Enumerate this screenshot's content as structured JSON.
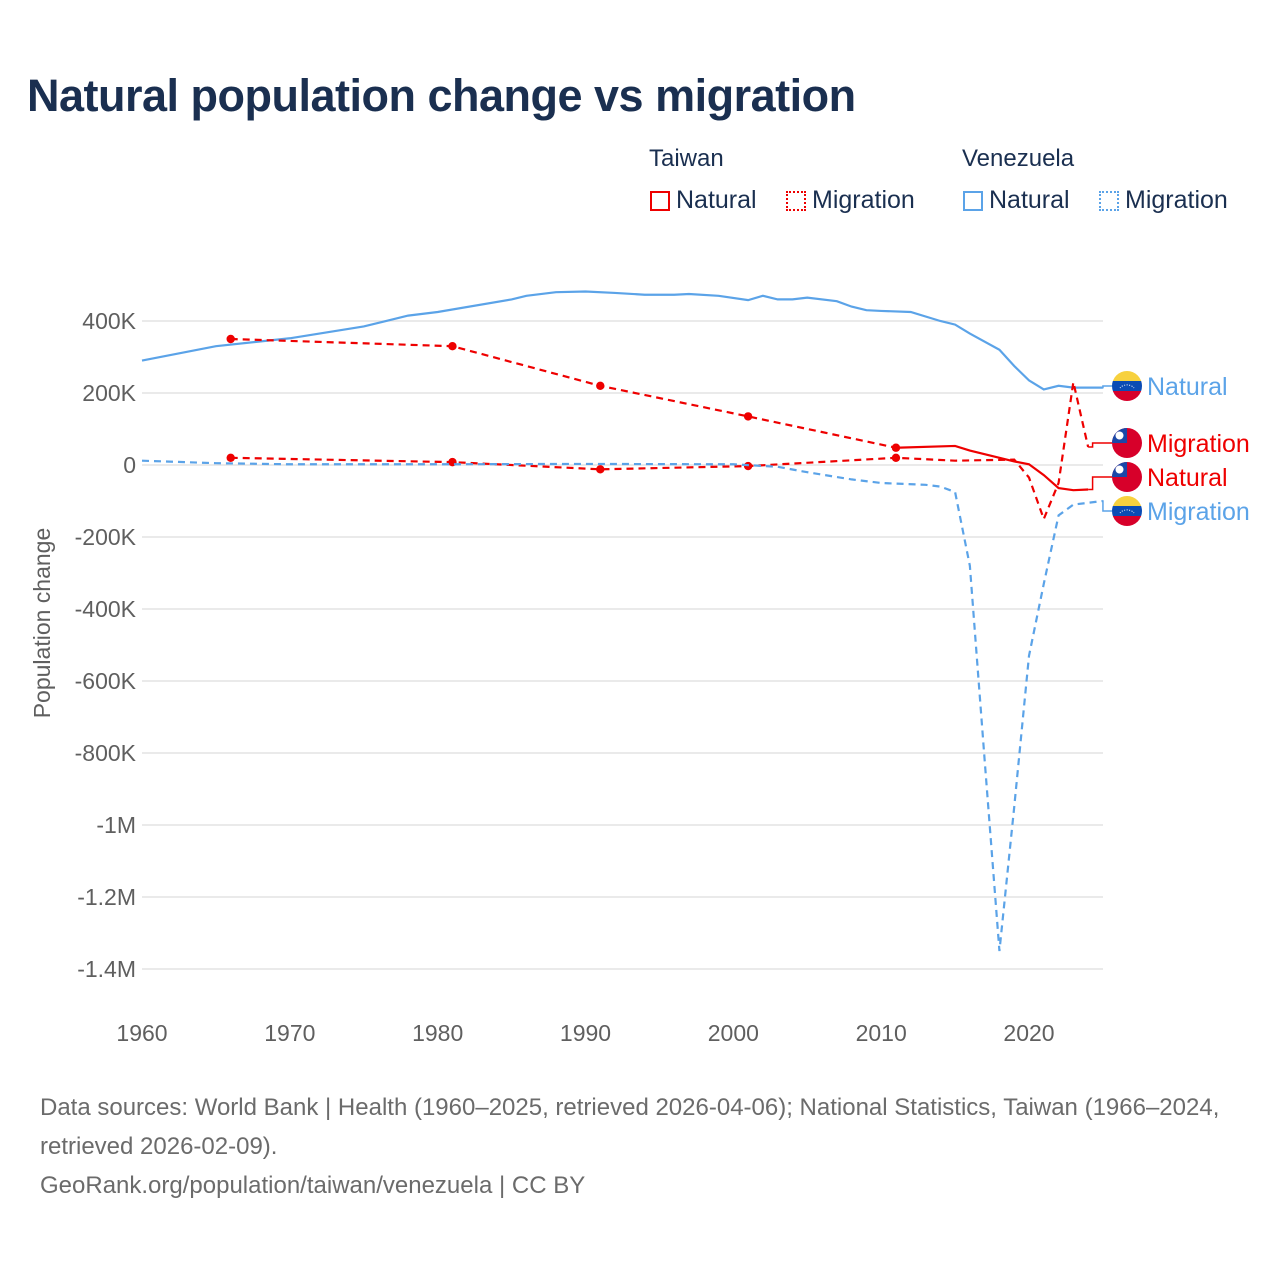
{
  "title": "Natural population change vs migration",
  "legend": {
    "groups": [
      {
        "name": "Taiwan",
        "items": [
          {
            "label": "Natural",
            "style": "solid",
            "color": "#ee0000"
          },
          {
            "label": "Migration",
            "style": "dotted",
            "color": "#ee0000"
          }
        ]
      },
      {
        "name": "Venezuela",
        "items": [
          {
            "label": "Natural",
            "style": "solid",
            "color": "#5ba3e8"
          },
          {
            "label": "Migration",
            "style": "dotted",
            "color": "#5ba3e8"
          }
        ]
      }
    ]
  },
  "footer": {
    "sources": "Data sources: World Bank | Health (1960–2025, retrieved 2026-04-06); National Statistics, Taiwan (1966–2024, retrieved 2026-02-09).",
    "credit": "GeoRank.org/population/taiwan/venezuela | CC BY"
  },
  "chart_data": {
    "type": "line",
    "title": "Natural population change vs migration",
    "xlabel": "",
    "ylabel": "Population change",
    "xlim": [
      1960,
      2025
    ],
    "ylim": [
      -1400000,
      400000
    ],
    "x_ticks": [
      1960,
      1970,
      1980,
      1990,
      2000,
      2010,
      2020
    ],
    "x_tick_labels": [
      "1960",
      "1970",
      "1980",
      "1990",
      "2000",
      "2010",
      "2020"
    ],
    "y_ticks": [
      400000,
      200000,
      0,
      -200000,
      -400000,
      -600000,
      -800000,
      -1000000,
      -1200000,
      -1400000
    ],
    "y_tick_labels": [
      "400K",
      "200K",
      "0",
      "-200K",
      "-400K",
      "-600K",
      "-800K",
      "-1M",
      "-1.2M",
      "-1.4M"
    ],
    "grid": true,
    "legend_position": "top-right",
    "series": [
      {
        "name": "Venezuela Natural",
        "end_label": "Natural",
        "country": "Venezuela",
        "color": "#5ba3e8",
        "dash": false,
        "markers": false,
        "x": [
          1960,
          1965,
          1970,
          1975,
          1978,
          1980,
          1985,
          1986,
          1988,
          1990,
          1992,
          1994,
          1996,
          1997,
          1999,
          2001,
          2002,
          2003,
          2004,
          2005,
          2007,
          2008,
          2009,
          2010,
          2012,
          2014,
          2015,
          2016,
          2018,
          2019,
          2020,
          2021,
          2022,
          2023,
          2024,
          2025
        ],
        "y": [
          290000,
          330000,
          352000,
          385000,
          415000,
          425000,
          460000,
          470000,
          480000,
          482000,
          478000,
          473000,
          473000,
          475000,
          470000,
          458000,
          470000,
          460000,
          460000,
          465000,
          455000,
          440000,
          430000,
          428000,
          425000,
          400000,
          390000,
          365000,
          320000,
          275000,
          235000,
          210000,
          220000,
          215000,
          215000,
          215000
        ]
      },
      {
        "name": "Taiwan Migration",
        "end_label": "Migration",
        "country": "Taiwan",
        "color": "#ee0000",
        "dash": true,
        "markers": true,
        "x": [
          1966,
          1981,
          1991,
          2001,
          2011,
          2015,
          2019,
          2020,
          2021,
          2022,
          2023,
          2024
        ],
        "y": [
          20000,
          8000,
          -12000,
          -3000,
          20000,
          12000,
          15000,
          -35000,
          -150000,
          -50000,
          230000,
          50000
        ]
      },
      {
        "name": "Taiwan Natural",
        "end_label": "Natural",
        "country": "Taiwan",
        "color": "#ee0000",
        "dash": false,
        "markers": true,
        "x": [
          1966,
          1981,
          1991,
          2001,
          2011,
          2015,
          2016,
          2017,
          2018,
          2019,
          2020,
          2021,
          2022,
          2023,
          2024
        ],
        "y": [
          350000,
          330000,
          220000,
          135000,
          48000,
          53000,
          40000,
          30000,
          20000,
          10000,
          2000,
          -28000,
          -64000,
          -70000,
          -68000
        ]
      },
      {
        "name": "Venezuela Migration",
        "end_label": "Migration",
        "country": "Venezuela",
        "color": "#5ba3e8",
        "dash": true,
        "markers": false,
        "x": [
          1960,
          1965,
          1970,
          1980,
          1990,
          2000,
          2003,
          2005,
          2008,
          2010,
          2013,
          2014,
          2015,
          2016,
          2017,
          2018,
          2019,
          2020,
          2021,
          2022,
          2023,
          2024,
          2025
        ],
        "y": [
          12000,
          5000,
          2000,
          2000,
          3000,
          2000,
          -5000,
          -20000,
          -40000,
          -50000,
          -55000,
          -60000,
          -75000,
          -280000,
          -820000,
          -1350000,
          -950000,
          -530000,
          -330000,
          -140000,
          -110000,
          -105000,
          -100000
        ]
      }
    ]
  }
}
